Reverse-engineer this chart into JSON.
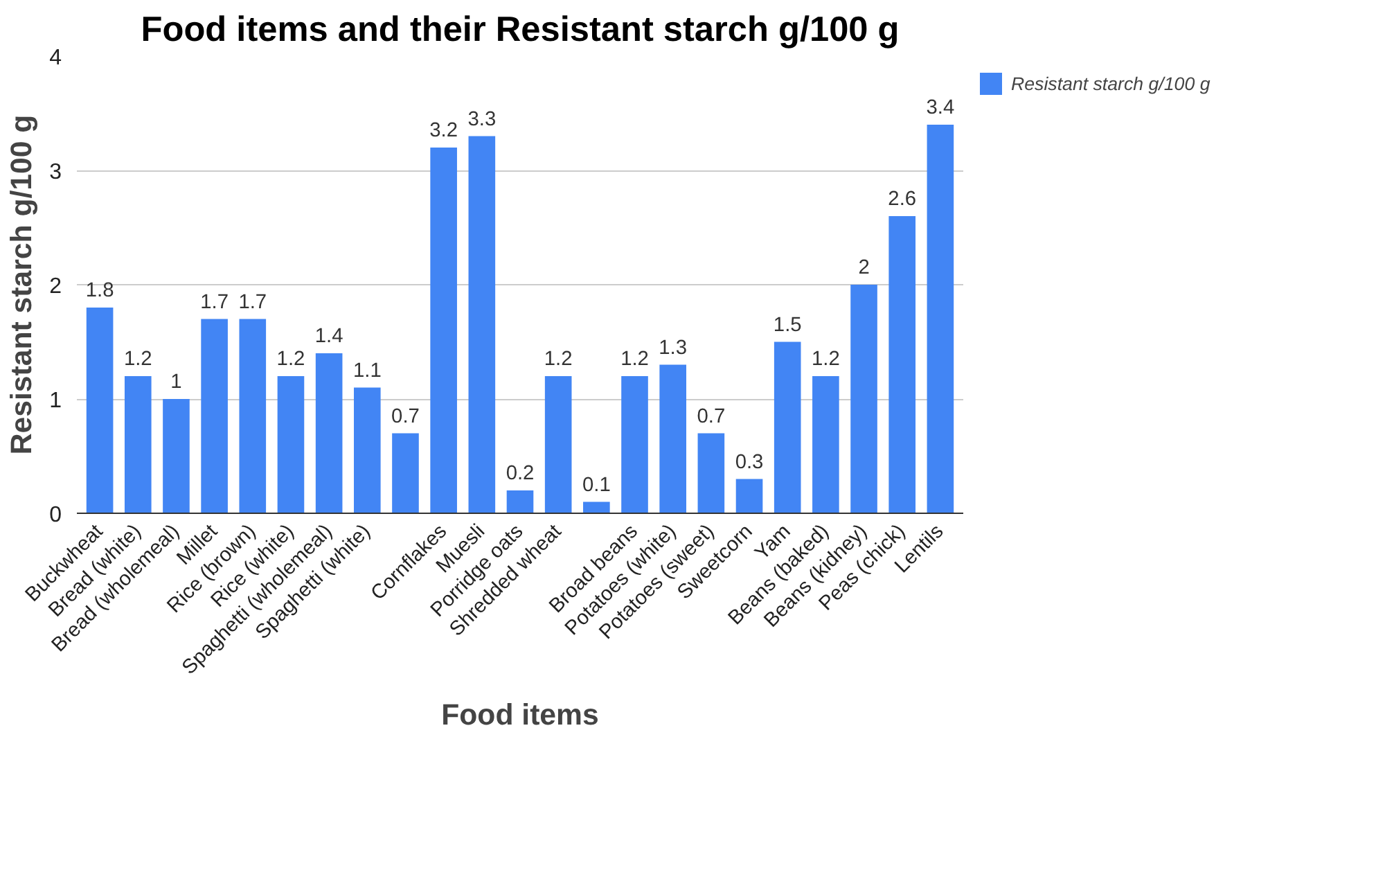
{
  "chart_data": {
    "type": "bar",
    "title": "Food items and their Resistant starch g/100 g",
    "xlabel": "Food items",
    "ylabel": "Resistant starch g/100 g",
    "categories": [
      "Buckwheat",
      "Bread (white)",
      "Bread (wholemeal)",
      "Millet",
      "Rice (brown)",
      "Rice (white)",
      "Spaghetti (wholemeal)",
      "Spaghetti (white)",
      null,
      "Cornflakes",
      "Muesli",
      "Porridge oats",
      "Shredded wheat",
      null,
      "Broad beans",
      "Potatoes (white)",
      "Potatoes (sweet)",
      "Sweetcorn",
      "Yam",
      "Beans (baked)",
      "Beans (kidney)",
      "Peas (chick)",
      "Lentils"
    ],
    "series": [
      {
        "name": "Resistant starch g/100 g",
        "color": "#4285f4",
        "values": [
          1.8,
          1.2,
          1,
          1.7,
          1.7,
          1.2,
          1.4,
          1.1,
          0.7,
          3.2,
          3.3,
          0.2,
          1.2,
          0.1,
          1.2,
          1.3,
          0.7,
          0.3,
          1.5,
          1.2,
          2,
          2.6,
          3.4
        ]
      }
    ],
    "ylim": [
      0,
      4
    ],
    "yticks": [
      0,
      1,
      2,
      3,
      4
    ],
    "grid": "y",
    "legend": "top right",
    "data_labels": true
  }
}
